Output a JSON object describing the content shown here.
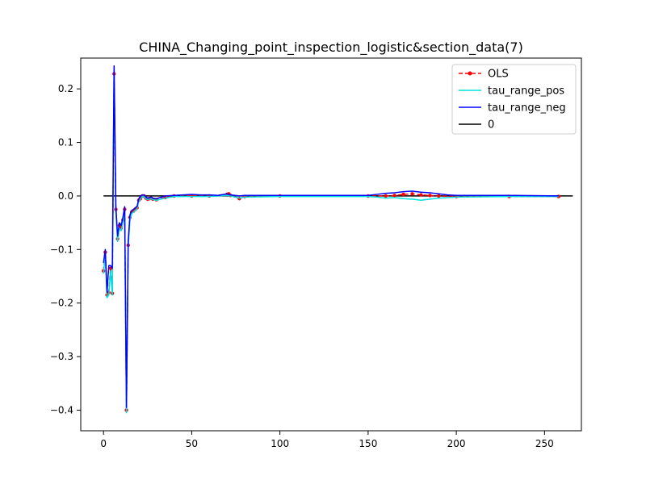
{
  "chart_data": {
    "type": "line",
    "title": "CHINA_Changing_point_inspection_logistic&section_data(7)",
    "xlabel": "",
    "ylabel": "",
    "xlim": [
      -12.9,
      270.9
    ],
    "ylim": [
      -0.4385,
      0.2575
    ],
    "x_ticks": [
      0,
      50,
      100,
      150,
      200,
      250
    ],
    "x_tick_labels": [
      "0",
      "50",
      "100",
      "150",
      "200",
      "250"
    ],
    "y_ticks": [
      -0.4,
      -0.3,
      -0.2,
      -0.1,
      0.0,
      0.1,
      0.2
    ],
    "y_tick_labels": [
      "−0.4",
      "−0.3",
      "−0.2",
      "−0.1",
      "0.0",
      "0.1",
      "0.2"
    ],
    "grid": false,
    "legend_position": "top-right",
    "colors": {
      "OLS": "#ff0000",
      "tau_range_pos": "#00e0e0",
      "tau_range_neg": "#0000ff",
      "zero": "#000000"
    },
    "series": [
      {
        "name": "OLS",
        "style": "dashed-dots",
        "points": [
          [
            0,
            -0.14
          ],
          [
            1,
            -0.105
          ],
          [
            2,
            -0.185
          ],
          [
            3,
            -0.18
          ],
          [
            4,
            -0.135
          ],
          [
            5,
            -0.182
          ],
          [
            6,
            0.228
          ],
          [
            7,
            -0.025
          ],
          [
            8,
            -0.08
          ],
          [
            9,
            -0.055
          ],
          [
            10,
            -0.06
          ],
          [
            11,
            -0.045
          ],
          [
            12,
            -0.025
          ],
          [
            13,
            -0.4
          ],
          [
            14,
            -0.092
          ],
          [
            15,
            -0.04
          ],
          [
            16,
            -0.03
          ],
          [
            17,
            -0.028
          ],
          [
            18,
            -0.025
          ],
          [
            19,
            -0.022
          ],
          [
            20,
            -0.008
          ],
          [
            21,
            -0.005
          ],
          [
            22,
            0.0
          ],
          [
            23,
            0.0
          ],
          [
            24,
            -0.004
          ],
          [
            25,
            -0.006
          ],
          [
            26,
            -0.005
          ],
          [
            27,
            -0.004
          ],
          [
            28,
            -0.006
          ],
          [
            30,
            -0.007
          ],
          [
            35,
            -0.003
          ],
          [
            40,
            0.0
          ],
          [
            50,
            0.0
          ],
          [
            60,
            0.0
          ],
          [
            70,
            0.003
          ],
          [
            71,
            0.004
          ],
          [
            72,
            0.001
          ],
          [
            77,
            -0.005
          ],
          [
            80,
            -0.001
          ],
          [
            100,
            0.0
          ],
          [
            150,
            0.0
          ],
          [
            160,
            0.0
          ],
          [
            165,
            0.001
          ],
          [
            170,
            0.003
          ],
          [
            175,
            0.004
          ],
          [
            180,
            0.002
          ],
          [
            185,
            0.001
          ],
          [
            190,
            0.0
          ],
          [
            200,
            -0.001
          ],
          [
            230,
            -0.001
          ],
          [
            258,
            -0.001
          ]
        ]
      },
      {
        "name": "tau_range_pos",
        "style": "solid",
        "points": [
          [
            0,
            -0.145
          ],
          [
            1,
            -0.11
          ],
          [
            2,
            -0.19
          ],
          [
            3,
            -0.185
          ],
          [
            4,
            -0.14
          ],
          [
            5,
            -0.185
          ],
          [
            6,
            0.235
          ],
          [
            7,
            -0.028
          ],
          [
            8,
            -0.085
          ],
          [
            9,
            -0.06
          ],
          [
            10,
            -0.065
          ],
          [
            11,
            -0.05
          ],
          [
            12,
            -0.028
          ],
          [
            13,
            -0.405
          ],
          [
            14,
            -0.095
          ],
          [
            15,
            -0.045
          ],
          [
            16,
            -0.033
          ],
          [
            17,
            -0.03
          ],
          [
            18,
            -0.027
          ],
          [
            19,
            -0.024
          ],
          [
            20,
            -0.01
          ],
          [
            21,
            -0.006
          ],
          [
            22,
            -0.001
          ],
          [
            23,
            -0.001
          ],
          [
            24,
            -0.005
          ],
          [
            25,
            -0.007
          ],
          [
            26,
            -0.006
          ],
          [
            27,
            -0.005
          ],
          [
            28,
            -0.007
          ],
          [
            30,
            -0.008
          ],
          [
            35,
            -0.004
          ],
          [
            40,
            -0.001
          ],
          [
            50,
            -0.001
          ],
          [
            60,
            -0.001
          ],
          [
            70,
            0.001
          ],
          [
            72,
            0.0
          ],
          [
            77,
            -0.004
          ],
          [
            80,
            -0.002
          ],
          [
            100,
            -0.001
          ],
          [
            150,
            -0.001
          ],
          [
            155,
            -0.002
          ],
          [
            160,
            -0.004
          ],
          [
            165,
            -0.003
          ],
          [
            170,
            -0.005
          ],
          [
            175,
            -0.006
          ],
          [
            180,
            -0.008
          ],
          [
            185,
            -0.006
          ],
          [
            190,
            -0.004
          ],
          [
            200,
            -0.002
          ],
          [
            230,
            -0.001
          ],
          [
            258,
            -0.001
          ]
        ]
      },
      {
        "name": "tau_range_neg",
        "style": "solid",
        "points": [
          [
            0,
            -0.125
          ],
          [
            1,
            -0.1
          ],
          [
            2,
            -0.18
          ],
          [
            3,
            -0.13
          ],
          [
            4,
            -0.13
          ],
          [
            5,
            -0.135
          ],
          [
            6,
            0.243
          ],
          [
            7,
            -0.02
          ],
          [
            8,
            -0.075
          ],
          [
            9,
            -0.05
          ],
          [
            10,
            -0.055
          ],
          [
            11,
            -0.04
          ],
          [
            12,
            -0.02
          ],
          [
            13,
            -0.395
          ],
          [
            14,
            -0.085
          ],
          [
            15,
            -0.035
          ],
          [
            16,
            -0.027
          ],
          [
            17,
            -0.025
          ],
          [
            18,
            -0.022
          ],
          [
            19,
            -0.02
          ],
          [
            20,
            -0.005
          ],
          [
            21,
            0.0
          ],
          [
            22,
            0.002
          ],
          [
            23,
            0.002
          ],
          [
            24,
            -0.002
          ],
          [
            25,
            -0.004
          ],
          [
            26,
            -0.003
          ],
          [
            27,
            -0.002
          ],
          [
            28,
            -0.004
          ],
          [
            30,
            -0.005
          ],
          [
            35,
            0.0
          ],
          [
            40,
            0.001
          ],
          [
            45,
            0.002
          ],
          [
            50,
            0.003
          ],
          [
            55,
            0.002
          ],
          [
            60,
            0.002
          ],
          [
            65,
            0.001
          ],
          [
            70,
            0.004
          ],
          [
            72,
            0.002
          ],
          [
            77,
            0.0
          ],
          [
            80,
            0.001
          ],
          [
            100,
            0.001
          ],
          [
            150,
            0.001
          ],
          [
            155,
            0.003
          ],
          [
            160,
            0.005
          ],
          [
            165,
            0.006
          ],
          [
            170,
            0.008
          ],
          [
            175,
            0.009
          ],
          [
            180,
            0.007
          ],
          [
            185,
            0.006
          ],
          [
            190,
            0.004
          ],
          [
            195,
            0.002
          ],
          [
            200,
            0.001
          ],
          [
            230,
            0.001
          ],
          [
            258,
            0.0
          ]
        ]
      },
      {
        "name": "0",
        "style": "solid",
        "points": [
          [
            0,
            0.0
          ],
          [
            266,
            0.0
          ]
        ]
      }
    ]
  }
}
